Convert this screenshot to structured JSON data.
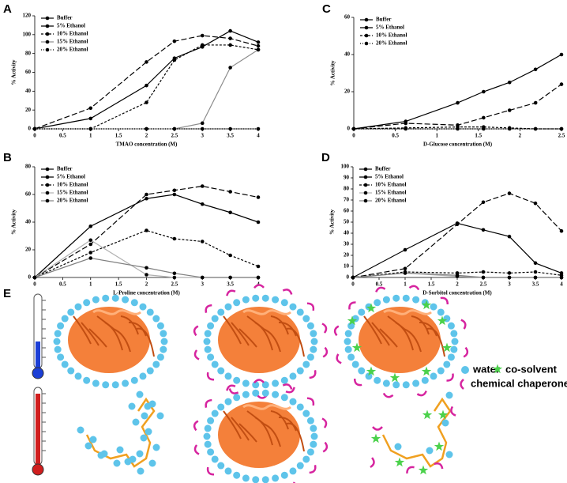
{
  "chart_data": [
    {
      "type": "line",
      "panel": "A",
      "xlabel": "TMAO concentration (M)",
      "ylabel": "% Activity",
      "x": [
        0,
        1,
        2,
        2.5,
        3,
        3.5,
        4
      ],
      "xlim": [
        0,
        4
      ],
      "xticks": [
        0,
        0.5,
        1,
        1.5,
        2,
        2.5,
        3,
        3.5,
        4
      ],
      "ylim": [
        0,
        120
      ],
      "yticks": [
        0,
        20,
        40,
        60,
        80,
        100,
        120
      ],
      "series": [
        {
          "name": "Buffer",
          "color": "#000000",
          "dash": "solid",
          "values": [
            0,
            11,
            46,
            75,
            87,
            104,
            92
          ]
        },
        {
          "name": "5% Ethanol",
          "color": "#000000",
          "dash": "long",
          "values": [
            0,
            22,
            71,
            93,
            99,
            96,
            88
          ]
        },
        {
          "name": "10% Ethanol",
          "color": "#000000",
          "dash": "short",
          "values": [
            0,
            0,
            28,
            73,
            89,
            89,
            84
          ]
        },
        {
          "name": "15% Ethanol",
          "color": "#8c8c8c",
          "dash": "solid",
          "values": [
            0,
            0,
            0,
            0,
            6,
            65,
            84
          ]
        },
        {
          "name": "20% Ethanol",
          "color": "#000000",
          "dash": "dot",
          "values": [
            0,
            0,
            0,
            0,
            0,
            0,
            0
          ]
        }
      ]
    },
    {
      "type": "line",
      "panel": "C",
      "xlabel": "D-Glucose concentration (M)",
      "ylabel": "% Activity",
      "x": [
        0,
        0.625,
        1.25,
        1.5625,
        1.875,
        2.1875,
        2.5
      ],
      "xlim": [
        0,
        2.5
      ],
      "xticks": [
        0,
        0.5,
        1,
        1.5,
        2,
        2.5
      ],
      "ylim": [
        0,
        60
      ],
      "yticks": [
        0,
        20,
        40,
        60
      ],
      "series": [
        {
          "name": "Buffer",
          "color": "#000000",
          "dash": "solid",
          "values": [
            0,
            4,
            14,
            20,
            25,
            32,
            40
          ]
        },
        {
          "name": "5% Ethanol",
          "color": "#000000",
          "dash": "long",
          "values": [
            0,
            3,
            2,
            6,
            10,
            14,
            24
          ]
        },
        {
          "name": "10% Ethanol",
          "color": "#000000",
          "dash": "short",
          "values": [
            0,
            0.5,
            1,
            1,
            0.5,
            0,
            0
          ]
        },
        {
          "name": "20% Ethanol",
          "color": "#000000",
          "dash": "dot",
          "values": [
            0,
            0,
            0,
            0,
            0,
            0,
            0
          ]
        }
      ]
    },
    {
      "type": "line",
      "panel": "B",
      "xlabel": "L-Proline concentration (M)",
      "ylabel": "% Activity",
      "x": [
        0,
        1,
        2,
        2.5,
        3,
        3.5,
        4
      ],
      "xlim": [
        0,
        4
      ],
      "xticks": [
        0,
        0.5,
        1,
        1.5,
        2,
        2.5,
        3,
        3.5,
        4
      ],
      "ylim": [
        0,
        80
      ],
      "yticks": [
        0,
        20,
        40,
        60,
        80
      ],
      "series": [
        {
          "name": "Buffer",
          "color": "#000000",
          "dash": "solid",
          "values": [
            0,
            37,
            57,
            60,
            53,
            47,
            40
          ]
        },
        {
          "name": "5% Ethanol",
          "color": "#000000",
          "dash": "long",
          "values": [
            0,
            24,
            60,
            63,
            66,
            62,
            58
          ]
        },
        {
          "name": "10% Ethanol",
          "color": "#000000",
          "dash": "short",
          "values": [
            0,
            18,
            34,
            28,
            26,
            16,
            8
          ]
        },
        {
          "name": "15% Ethanol",
          "color": "#b0b0b0",
          "dash": "solid",
          "values": [
            0,
            27,
            2,
            0,
            0,
            0,
            0
          ]
        },
        {
          "name": "20% Ethanol",
          "color": "#808080",
          "dash": "solid",
          "values": [
            0,
            14,
            7,
            3,
            0,
            0,
            0
          ]
        }
      ]
    },
    {
      "type": "line",
      "panel": "D",
      "xlabel": "D-Sorbitol concentration (M)",
      "ylabel": "% Activity",
      "x": [
        0,
        1,
        2,
        2.5,
        3,
        3.5,
        4
      ],
      "xlim": [
        0,
        4
      ],
      "xticks": [
        0,
        0.5,
        1,
        1.5,
        2,
        2.5,
        3,
        3.5,
        4
      ],
      "ylim": [
        0,
        100
      ],
      "yticks": [
        0,
        10,
        20,
        30,
        40,
        50,
        60,
        70,
        80,
        90,
        100
      ],
      "series": [
        {
          "name": "Buffer",
          "color": "#000000",
          "dash": "solid",
          "values": [
            0,
            25,
            49,
            43,
            37,
            13,
            4
          ]
        },
        {
          "name": "5% Ethanol",
          "color": "#000000",
          "dash": "long",
          "values": [
            0,
            8,
            48,
            68,
            76,
            67,
            42
          ]
        },
        {
          "name": "10% Ethanol",
          "color": "#000000",
          "dash": "short",
          "values": [
            0,
            5,
            4,
            5,
            4,
            5,
            2
          ]
        },
        {
          "name": "15% Ethanol",
          "color": "#b0b0b0",
          "dash": "solid",
          "values": [
            0,
            4,
            1,
            0,
            0,
            0,
            0
          ]
        },
        {
          "name": "20% Ethanol",
          "color": "#808080",
          "dash": "solid",
          "values": [
            0,
            4,
            2,
            0,
            0,
            0,
            0
          ]
        }
      ]
    }
  ],
  "panel_e": {
    "label": "E",
    "legend": {
      "water": "water",
      "cosolvent": "co-solvent",
      "chaperone": "chemical chaperone"
    }
  }
}
